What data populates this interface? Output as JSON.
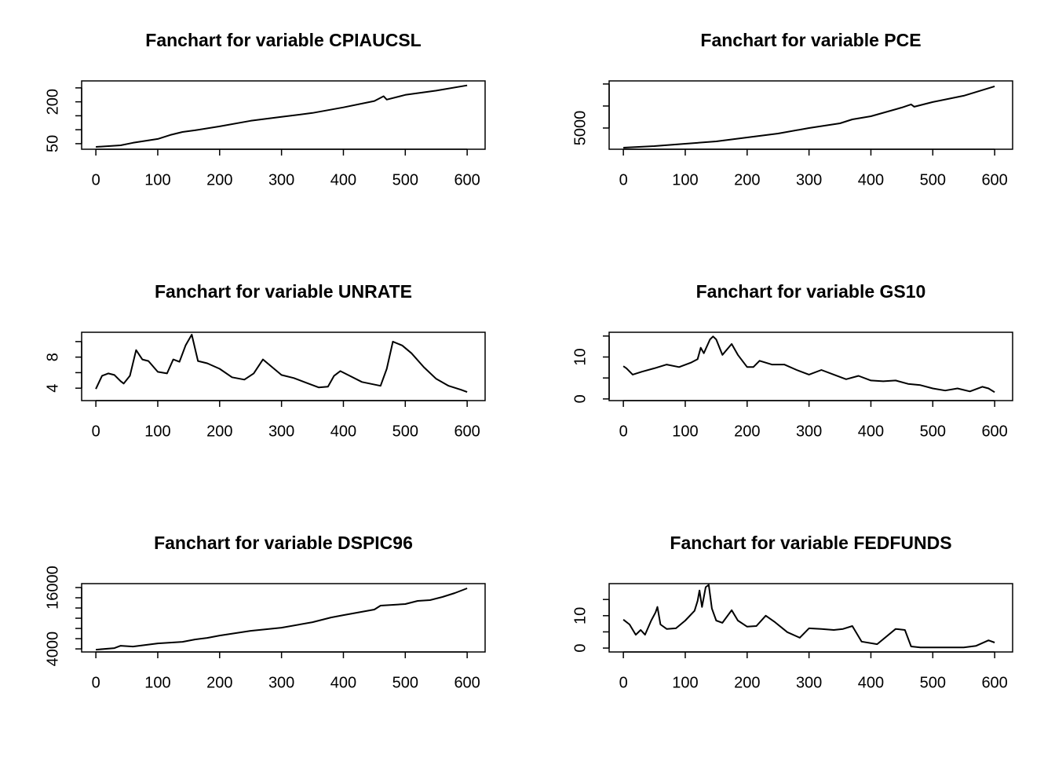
{
  "chart_data": [
    {
      "type": "line",
      "title": "Fanchart for variable CPIAUCSL",
      "color": "#000000",
      "x": [
        0,
        40,
        60,
        100,
        120,
        140,
        160,
        200,
        250,
        300,
        350,
        400,
        450,
        465,
        470,
        500,
        550,
        600
      ],
      "values": [
        38.5,
        44,
        53,
        67,
        81,
        92,
        98,
        112,
        132,
        146,
        160,
        180,
        203,
        220,
        208,
        225,
        240,
        259
      ],
      "xlim": [
        -23,
        629
      ],
      "xticks": [
        0,
        100,
        200,
        300,
        400,
        500,
        600
      ],
      "ylim": [
        30,
        275
      ],
      "yticks": [
        50,
        200
      ],
      "yminor_ticks": [
        100,
        150,
        250
      ]
    },
    {
      "type": "line",
      "title": "Fanchart for variable PCE",
      "color": "#000000",
      "x": [
        0,
        50,
        100,
        150,
        200,
        250,
        300,
        350,
        370,
        400,
        450,
        465,
        470,
        500,
        550,
        600
      ],
      "values": [
        537,
        894,
        1430,
        1966,
        2859,
        3752,
        5002,
        6073,
        6966,
        7680,
        9645,
        10360,
        9824,
        10896,
        12325,
        14468
      ],
      "xlim": [
        -23,
        629
      ],
      "xticks": [
        0,
        100,
        200,
        300,
        400,
        500,
        600
      ],
      "ylim": [
        180,
        15700
      ],
      "yticks": [
        5000
      ],
      "yminor_ticks": [
        10000,
        15000
      ]
    },
    {
      "type": "line",
      "title": "Fanchart for variable UNRATE",
      "color": "#000000",
      "x": [
        0,
        10,
        20,
        30,
        40,
        45,
        55,
        65,
        75,
        85,
        100,
        115,
        125,
        135,
        145,
        155,
        165,
        180,
        200,
        220,
        240,
        255,
        270,
        285,
        300,
        320,
        340,
        360,
        375,
        385,
        395,
        410,
        430,
        460,
        470,
        480,
        495,
        510,
        530,
        550,
        570,
        590,
        600
      ],
      "values": [
        3.9,
        5.6,
        5.9,
        5.7,
        4.9,
        4.6,
        5.6,
        8.9,
        7.7,
        7.5,
        6.1,
        5.9,
        7.7,
        7.4,
        9.5,
        10.9,
        7.5,
        7.2,
        6.5,
        5.4,
        5.1,
        5.9,
        7.7,
        6.7,
        5.7,
        5.3,
        4.7,
        4.1,
        4.2,
        5.6,
        6.2,
        5.6,
        4.8,
        4.3,
        6.5,
        10.0,
        9.5,
        8.5,
        6.7,
        5.2,
        4.3,
        3.8,
        3.5
      ],
      "xlim": [
        -23,
        629
      ],
      "xticks": [
        0,
        100,
        200,
        300,
        400,
        500,
        600
      ],
      "ylim": [
        2.4,
        11.2
      ],
      "yticks": [
        4,
        8
      ],
      "yminor_ticks": [
        6,
        10
      ]
    },
    {
      "type": "line",
      "title": "Fanchart for variable GS10",
      "color": "#000000",
      "x": [
        0,
        5,
        15,
        30,
        50,
        70,
        90,
        110,
        120,
        125,
        130,
        140,
        145,
        150,
        160,
        175,
        185,
        200,
        210,
        220,
        240,
        260,
        280,
        300,
        320,
        340,
        360,
        380,
        400,
        420,
        440,
        460,
        480,
        500,
        520,
        540,
        560,
        580,
        590,
        600
      ],
      "values": [
        7.8,
        7.3,
        5.8,
        6.5,
        7.3,
        8.2,
        7.6,
        8.7,
        9.5,
        12.2,
        10.9,
        14.2,
        14.9,
        14.2,
        10.5,
        13.1,
        10.5,
        7.6,
        7.6,
        9.1,
        8.2,
        8.2,
        6.9,
        5.8,
        6.9,
        5.8,
        4.7,
        5.5,
        4.4,
        4.2,
        4.4,
        3.6,
        3.3,
        2.5,
        2.0,
        2.5,
        1.8,
        2.9,
        2.5,
        1.6
      ],
      "xlim": [
        -23,
        629
      ],
      "xticks": [
        0,
        100,
        200,
        300,
        400,
        500,
        600
      ],
      "ylim": [
        -0.4,
        15.9
      ],
      "yticks": [
        0,
        10
      ],
      "yminor_ticks": [
        5,
        15
      ]
    },
    {
      "type": "line",
      "title": "Fanchart for variable DSPIC96",
      "color": "#000000",
      "x": [
        0,
        30,
        40,
        60,
        100,
        140,
        160,
        180,
        200,
        250,
        300,
        350,
        380,
        400,
        450,
        460,
        500,
        520,
        540,
        560,
        580,
        600
      ],
      "values": [
        3846,
        4154,
        4615,
        4462,
        5077,
        5385,
        5846,
        6154,
        6615,
        7538,
        8154,
        9231,
        10154,
        10615,
        11692,
        12462,
        12769,
        13385,
        13538,
        14154,
        14923,
        15846
      ],
      "xlim": [
        -23,
        629
      ],
      "xticks": [
        0,
        100,
        200,
        300,
        400,
        500,
        600
      ],
      "ylim": [
        3400,
        16770
      ],
      "yticks": [
        4000,
        16000
      ],
      "yminor_ticks": [
        6000,
        8000,
        10000,
        12000,
        14000
      ]
    },
    {
      "type": "line",
      "title": "Fanchart for variable FEDFUNDS",
      "color": "#000000",
      "x": [
        0,
        10,
        20,
        28,
        35,
        45,
        52,
        55,
        60,
        70,
        85,
        100,
        115,
        120,
        123,
        127,
        133,
        138,
        143,
        150,
        160,
        175,
        185,
        200,
        215,
        230,
        245,
        265,
        285,
        300,
        320,
        340,
        355,
        370,
        385,
        410,
        440,
        455,
        465,
        480,
        500,
        550,
        570,
        590,
        600
      ],
      "values": [
        8.8,
        7.3,
        4.1,
        5.6,
        4.1,
        8.5,
        11.0,
        12.7,
        7.3,
        5.9,
        6.1,
        8.5,
        11.5,
        14.6,
        17.8,
        12.7,
        18.8,
        19.5,
        12.2,
        8.5,
        7.8,
        11.7,
        8.5,
        6.6,
        6.8,
        10.0,
        8.0,
        4.9,
        3.2,
        6.1,
        5.9,
        5.6,
        5.9,
        6.8,
        2.0,
        1.2,
        5.9,
        5.6,
        0.5,
        0.2,
        0.2,
        0.2,
        0.7,
        2.4,
        1.7
      ],
      "xlim": [
        -23,
        629
      ],
      "xticks": [
        0,
        100,
        200,
        300,
        400,
        500,
        600
      ],
      "ylim": [
        -1.2,
        19.9
      ],
      "yticks": [
        0,
        10
      ],
      "yminor_ticks": [
        5,
        15
      ]
    }
  ]
}
